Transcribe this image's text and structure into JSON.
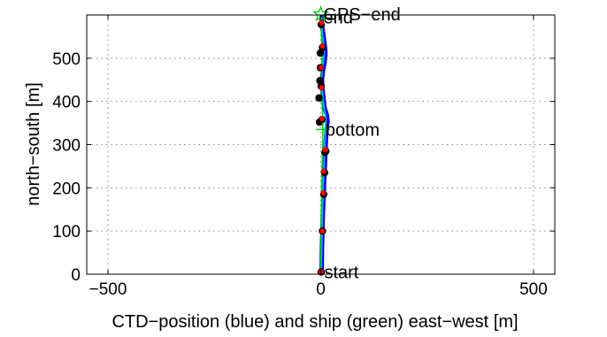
{
  "chart_data": {
    "type": "line",
    "title": "",
    "xlabel": "CTD−position (blue) and ship (green) east−west [m]",
    "ylabel": "north−south [m]",
    "xlim": [
      -550,
      550
    ],
    "ylim": [
      0,
      600
    ],
    "xticks": [
      -500,
      0,
      500
    ],
    "xtick_labels": [
      "−500",
      "0",
      "500"
    ],
    "yticks": [
      0,
      100,
      200,
      300,
      400,
      500
    ],
    "ytick_labels": [
      "0",
      "100",
      "200",
      "300",
      "400",
      "500"
    ],
    "grid": true,
    "series": [
      {
        "color": "#0000ff",
        "x": [
          2,
          3,
          4,
          5,
          7,
          8,
          9,
          10,
          11,
          12,
          14,
          16,
          14,
          9,
          6,
          4,
          3,
          5,
          9,
          11,
          10,
          8,
          6,
          4,
          3,
          2,
          2
        ],
        "y": [
          5,
          60,
          100,
          140,
          185,
          215,
          235,
          260,
          285,
          310,
          335,
          355,
          370,
          385,
          410,
          430,
          450,
          470,
          490,
          510,
          525,
          540,
          555,
          570,
          580,
          590,
          595
        ]
      },
      {
        "color": "#00bfbf",
        "x": [
          1,
          2,
          3,
          4,
          5,
          6,
          7,
          8,
          9,
          10,
          11,
          12,
          11,
          8,
          5,
          3,
          2,
          3,
          6,
          8,
          7,
          6,
          4,
          3,
          2,
          1,
          1
        ],
        "y": [
          5,
          60,
          100,
          140,
          185,
          215,
          235,
          260,
          285,
          310,
          335,
          355,
          370,
          385,
          410,
          430,
          450,
          470,
          490,
          510,
          525,
          540,
          555,
          570,
          580,
          590,
          595
        ]
      },
      {
        "color": "#00cc00",
        "x": [
          0,
          1,
          2,
          3,
          4,
          5,
          5,
          3,
          2,
          2,
          3,
          2,
          1,
          0
        ],
        "y": [
          5,
          100,
          185,
          240,
          285,
          330,
          360,
          395,
          430,
          475,
          510,
          545,
          575,
          595
        ]
      }
    ],
    "markers": [
      {
        "kind": "ctd",
        "x": 1,
        "y": 5
      },
      {
        "kind": "ctd",
        "x": 4,
        "y": 100
      },
      {
        "kind": "ctd",
        "x": 7,
        "y": 185
      },
      {
        "kind": "ctd",
        "x": 9,
        "y": 235
      },
      {
        "kind": "ctd",
        "x": 10,
        "y": 282
      },
      {
        "kind": "ctd",
        "x": 12,
        "y": 285
      },
      {
        "kind": "ctd",
        "x": -3,
        "y": 352
      },
      {
        "kind": "ctd",
        "x": 3,
        "y": 358
      },
      {
        "kind": "ctd",
        "x": -4,
        "y": 408
      },
      {
        "kind": "ctd",
        "x": 1,
        "y": 435
      },
      {
        "kind": "ctd",
        "x": -2,
        "y": 448
      },
      {
        "kind": "ctd",
        "x": -1,
        "y": 478
      },
      {
        "kind": "ctd",
        "x": -1,
        "y": 512
      },
      {
        "kind": "ctd",
        "x": 4,
        "y": 525
      },
      {
        "kind": "ctd",
        "x": 1,
        "y": 578
      },
      {
        "kind": "ship",
        "x": 1,
        "y": 5
      },
      {
        "kind": "ship",
        "x": 4,
        "y": 100
      },
      {
        "kind": "ship",
        "x": 6,
        "y": 188
      },
      {
        "kind": "ship",
        "x": 7,
        "y": 238
      },
      {
        "kind": "ship",
        "x": 11,
        "y": 288
      },
      {
        "kind": "ship",
        "x": 3,
        "y": 360
      },
      {
        "kind": "ship",
        "x": 2,
        "y": 432
      },
      {
        "kind": "ship",
        "x": 1,
        "y": 478
      },
      {
        "kind": "ship",
        "x": 4,
        "y": 528
      },
      {
        "kind": "ship",
        "x": 2,
        "y": 582
      }
    ],
    "annotations": [
      {
        "label": "start",
        "x": 2,
        "y": 5,
        "marker": "none"
      },
      {
        "label": "bottom",
        "x": 5,
        "y": 335,
        "marker": "plus"
      },
      {
        "label": "end",
        "x": 0,
        "y": 595,
        "marker": "none"
      },
      {
        "label": "GPS−end",
        "x": 0,
        "y": 602,
        "marker": "star"
      }
    ],
    "colors": {
      "ctd_fill": "#000000",
      "ship_fill": "#ff0000",
      "marker_green": "#00cc00",
      "grid": "#888888"
    }
  }
}
